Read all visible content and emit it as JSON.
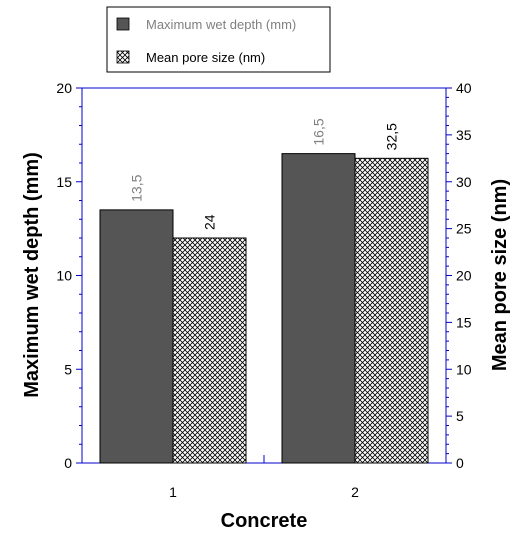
{
  "chart_data": {
    "type": "bar",
    "categories": [
      "1",
      "2"
    ],
    "xlabel": "Concrete",
    "series": [
      {
        "name": "Maximum wet depth (mm)",
        "values": [
          13.5,
          16.5
        ],
        "data_labels": [
          "13,5",
          "16,5"
        ],
        "axis": "left",
        "color": "#555555",
        "label_color": "#808080"
      },
      {
        "name": "Mean pore size (nm)",
        "values": [
          24,
          32.5
        ],
        "data_labels": [
          "24",
          "32,5"
        ],
        "axis": "right",
        "color": "#ffffff",
        "pattern": "crosshatch",
        "label_color": "#000000"
      }
    ],
    "left_axis": {
      "label": "Maximum wet depth (mm)",
      "ylim": [
        0,
        20
      ],
      "ticks": [
        0,
        5,
        10,
        15,
        20
      ]
    },
    "right_axis": {
      "label": "Mean pore size (nm)",
      "ylim": [
        0,
        40
      ],
      "ticks": [
        0,
        5,
        10,
        15,
        20,
        25,
        30,
        35,
        40
      ]
    },
    "legend_position": "top-center",
    "axis_color": "#0000cc",
    "grid": false
  }
}
